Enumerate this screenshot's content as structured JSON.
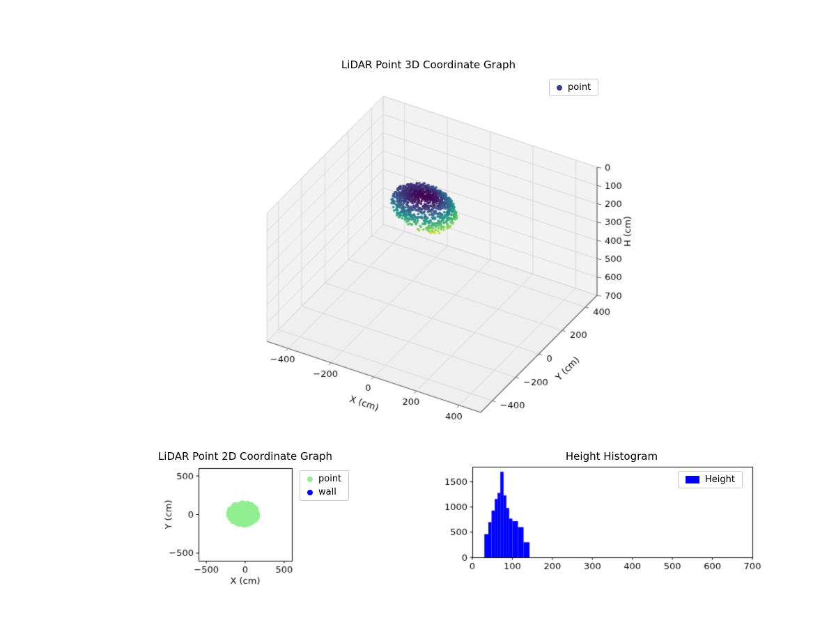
{
  "figure": {
    "background": "#ffffff"
  },
  "colors": {
    "point_3d_legend": "#3d3d92",
    "point_2d": "#90ee90",
    "wall": "#0000ff",
    "histogram": "#0000ff",
    "colormap": "viridis"
  },
  "chart_data": [
    {
      "id": "lidar-3d",
      "type": "scatter3d",
      "title": "LiDAR Point 3D Coordinate Graph",
      "xlabel": "X (cm)",
      "ylabel": "Y (cm)",
      "zlabel": "H (cm)",
      "xlim": [
        -500,
        500
      ],
      "ylim": [
        -500,
        500
      ],
      "zlim": [
        700,
        0
      ],
      "xticks": [
        -400,
        -200,
        0,
        200,
        400
      ],
      "yticks": [
        -400,
        -200,
        0,
        200,
        400
      ],
      "zticks": [
        0,
        100,
        200,
        300,
        400,
        500,
        600,
        700
      ],
      "grid": true,
      "legend_position": "upper right",
      "series": [
        {
          "name": "point",
          "legend_color": "#3d3d92",
          "colormap": "viridis",
          "color_by": "height",
          "cluster": {
            "center_x": -25,
            "center_y": -20,
            "rx": 140,
            "ry": 115,
            "h_min": 30,
            "h_max": 150,
            "shape": "bowl",
            "n_points": 1200
          }
        }
      ]
    },
    {
      "id": "lidar-2d",
      "type": "scatter",
      "title": "LiDAR Point 2D Coordinate Graph",
      "xlabel": "X (cm)",
      "ylabel": "Y (cm)",
      "xlim": [
        -600,
        600
      ],
      "ylim": [
        -600,
        600
      ],
      "xticks": [
        -500,
        0,
        500
      ],
      "yticks": [
        -500,
        0,
        500
      ],
      "grid": false,
      "legend_position": "outside upper right",
      "series": [
        {
          "name": "point",
          "color": "#90ee90",
          "cluster": {
            "center_x": -25,
            "center_y": 8,
            "rx": 200,
            "ry": 155,
            "n_points": 450
          }
        },
        {
          "name": "wall",
          "color": "#0000ff",
          "cluster": null
        }
      ]
    },
    {
      "id": "height-histogram",
      "type": "bar",
      "title": "Height Histogram",
      "xlabel": "",
      "ylabel": "",
      "xlim": [
        0,
        700
      ],
      "ylim": [
        0,
        1800
      ],
      "xticks": [
        0,
        100,
        200,
        300,
        400,
        500,
        600,
        700
      ],
      "yticks": [
        0,
        500,
        1000,
        1500
      ],
      "grid": false,
      "legend_position": "upper right",
      "series": [
        {
          "name": "Height",
          "color": "#0000ff",
          "bins": [
            [
              30,
              40,
              460
            ],
            [
              40,
              48,
              700
            ],
            [
              48,
              56,
              930
            ],
            [
              56,
              63,
              1160
            ],
            [
              63,
              70,
              1280
            ],
            [
              70,
              78,
              1700
            ],
            [
              78,
              85,
              1230
            ],
            [
              85,
              92,
              980
            ],
            [
              92,
              100,
              770
            ],
            [
              100,
              114,
              720
            ],
            [
              114,
              128,
              600
            ],
            [
              128,
              143,
              300
            ]
          ]
        }
      ]
    }
  ]
}
